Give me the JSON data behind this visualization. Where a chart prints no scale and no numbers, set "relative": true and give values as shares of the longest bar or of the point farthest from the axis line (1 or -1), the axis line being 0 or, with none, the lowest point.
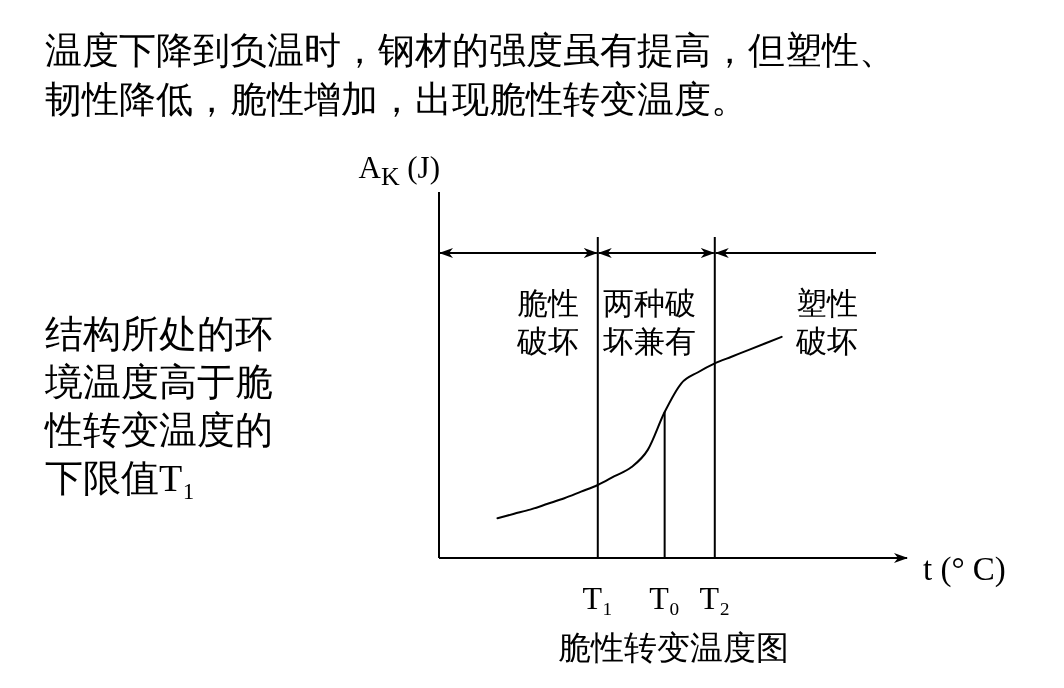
{
  "chart_data": {
    "type": "line",
    "title": "温度下降到负温时，钢材的强度虽有提高，但塑性、韧性降低，脆性增加，出现脆性转变温度。",
    "xlabel": "t (° C)",
    "ylabel": "A$_{K}$ (J)",
    "relative": true,
    "categories": [
      null,
      null,
      null,
      null,
      null,
      null,
      null,
      null,
      null,
      "T₁",
      null,
      null,
      null,
      "T₀",
      null,
      null,
      "T₂",
      null,
      null,
      null,
      null,
      null,
      null,
      null,
      null,
      null,
      null,
      null
    ],
    "series": [
      {
        "color": "#000000",
        "values": [
          null,
          null,
          null,
          0.18,
          0.2,
          0.22,
          0.245,
          0.27,
          0.3,
          0.33,
          0.37,
          0.41,
          0.49,
          0.66,
          0.79,
          0.84,
          0.88,
          0.91,
          0.94,
          0.97,
          1,
          null,
          null,
          null,
          null,
          null,
          null,
          null
        ]
      },
      {
        "type": "bar",
        "color": "#000000",
        "values": [
          null,
          null,
          null,
          null,
          null,
          null,
          null,
          null,
          null,
          null,
          null,
          null,
          null,
          0.66,
          null,
          null,
          null,
          null,
          null,
          null,
          null,
          null,
          null,
          null,
          null,
          null,
          null,
          null
        ]
      }
    ],
    "ref_lines": [
      {
        "axis": "x",
        "value": "T₁"
      },
      {
        "axis": "x",
        "value": "T₂"
      }
    ],
    "annotations": [
      "结构所处的环境温度高于脆性转变温度的下限值T₁",
      "脆性破坏",
      "两种破坏兼有",
      "塑性破坏",
      "脆性转变温度图"
    ]
  }
}
